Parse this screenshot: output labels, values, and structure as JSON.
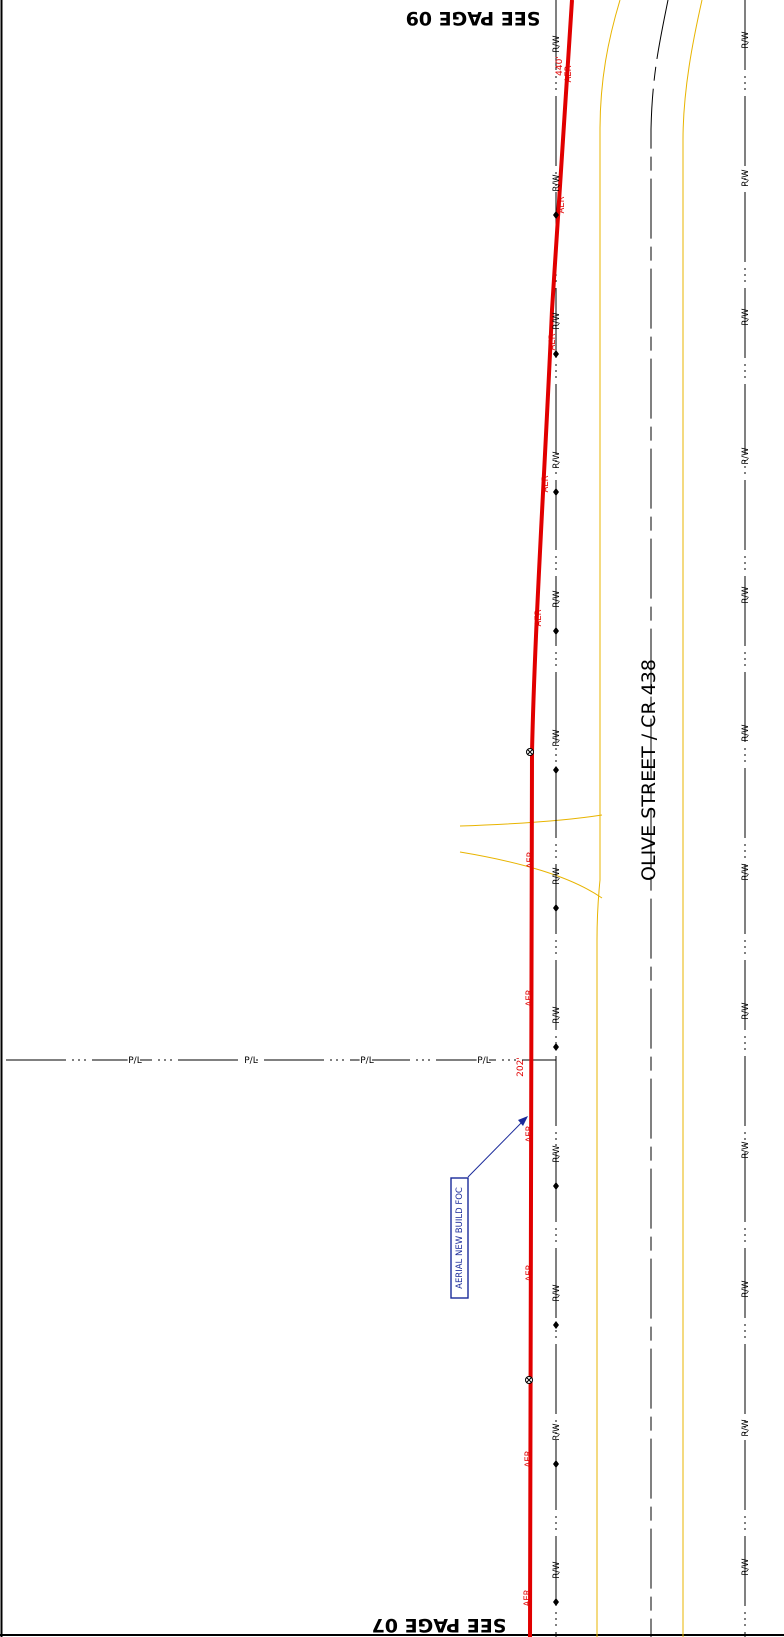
{
  "sheet": {
    "see_page_top": "SEE PAGE 09",
    "see_page_bottom": "SEE PAGE 07"
  },
  "road": {
    "name": "OLIVE STREET / CR 438"
  },
  "labels": {
    "right_of_way": "R/W",
    "property_line": "P/L",
    "aerial": "AER",
    "callout": "AERIAL NEW BUILD FOC",
    "dim_top": "440'",
    "dim_mid": "202'"
  },
  "colors": {
    "fiber_route": "#e10000",
    "edge_of_pavement": "#e8b400",
    "callout": "#1a2a9a",
    "linework": "#000000"
  }
}
